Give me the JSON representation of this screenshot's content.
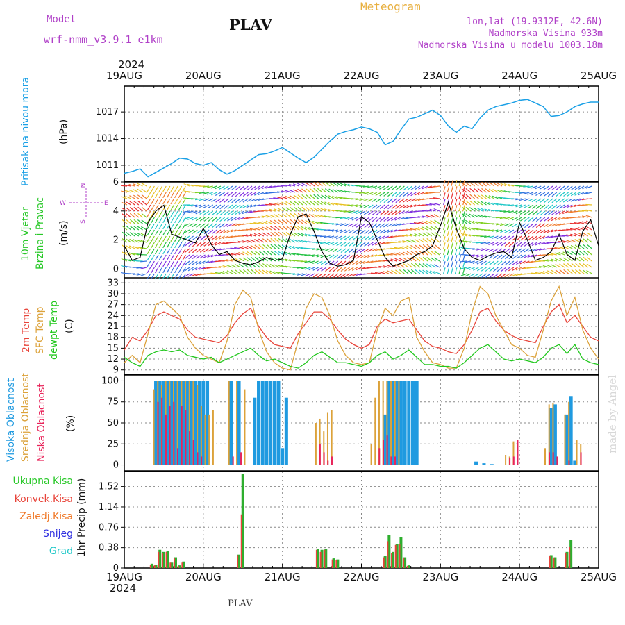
{
  "header": {
    "model_label": "Model",
    "model_value": "wrf-nmm_v3.9.1 e1km",
    "station": "PLAV",
    "meteogram": "Meteogram",
    "lonlat": "lon,lat (19.9312E, 42.6N)",
    "elevation": "Nadmorska Visina 933m",
    "model_elevation": "Nadmorska Visina u modelu 1003.18m",
    "year_top": "2024",
    "year_bottom": "2024",
    "footer_station": "PLAV",
    "watermark": "made by Angel"
  },
  "colors": {
    "pressure": "#1aa0e6",
    "temp2m": "#e8443a",
    "sfc": "#dca23a",
    "dew": "#22c81e",
    "high_cloud": "#1f9ae0",
    "mid_cloud": "#dca23a",
    "low_cloud": "#e8245a",
    "total_precip": "#2eae2e",
    "conv_precip": "#e8443a",
    "magenta": "#b040c8",
    "cyan": "#20c8c8",
    "blue": "#3030e0",
    "green_label": "#28c828",
    "orange_label": "#f07a2a"
  },
  "chart_data": [
    {
      "type": "line",
      "panel": "pressure",
      "ylabel_main": "Pritisak na nivou mora",
      "ylabel_unit": "(hPa)",
      "yticks": [
        1011,
        1014,
        1017
      ],
      "ylim": [
        1009.2,
        1019.9
      ],
      "x_day_labels": [
        "19AUG",
        "20AUG",
        "21AUG",
        "22AUG",
        "23AUG",
        "24AUG",
        "25AUG"
      ],
      "xlim_days": [
        0,
        6
      ],
      "series": [
        {
          "color_key": "pressure",
          "x": [
            0,
            0.1,
            0.2,
            0.3,
            0.4,
            0.5,
            0.6,
            0.7,
            0.8,
            0.9,
            1.0,
            1.1,
            1.2,
            1.3,
            1.4,
            1.5,
            1.6,
            1.7,
            1.8,
            1.9,
            2.0,
            2.1,
            2.2,
            2.3,
            2.4,
            2.5,
            2.6,
            2.7,
            2.8,
            2.9,
            3.0,
            3.1,
            3.2,
            3.3,
            3.4,
            3.5,
            3.6,
            3.7,
            3.8,
            3.9,
            4.0,
            4.1,
            4.2,
            4.3,
            4.4,
            4.5,
            4.6,
            4.7,
            4.8,
            4.9,
            5.0,
            5.1,
            5.2,
            5.3,
            5.4,
            5.5,
            5.6,
            5.7,
            5.8,
            5.9,
            6.0
          ],
          "values": [
            1010.1,
            1010.3,
            1010.6,
            1009.7,
            1010.2,
            1010.7,
            1011.2,
            1011.8,
            1011.7,
            1011.2,
            1011.0,
            1011.3,
            1010.5,
            1010.0,
            1010.4,
            1011.0,
            1011.6,
            1012.2,
            1012.3,
            1012.6,
            1013.0,
            1012.4,
            1011.8,
            1011.3,
            1011.9,
            1012.8,
            1013.7,
            1014.5,
            1014.8,
            1015.0,
            1015.3,
            1015.1,
            1014.7,
            1013.3,
            1013.7,
            1015.0,
            1016.2,
            1016.4,
            1016.8,
            1017.2,
            1016.6,
            1015.4,
            1014.7,
            1015.4,
            1015.1,
            1016.3,
            1017.2,
            1017.6,
            1017.8,
            1018.0,
            1018.3,
            1018.4,
            1018.0,
            1017.6,
            1016.5,
            1016.6,
            1017.0,
            1017.6,
            1017.9,
            1018.1,
            1018.1
          ]
        }
      ]
    },
    {
      "type": "line",
      "panel": "wind",
      "ylabel_main": "10m Vjetar",
      "ylabel_sub": "Brzina i Pravac",
      "ylabel_unit": "(m/s)",
      "compass": {
        "n": "N",
        "s": "S",
        "e": "E",
        "w": "W"
      },
      "yticks": [
        0,
        2,
        4,
        6
      ],
      "ylim": [
        -0.6,
        6
      ],
      "x_day_labels": [
        "19AUG",
        "20AUG",
        "21AUG",
        "22AUG",
        "23AUG",
        "24AUG",
        "25AUG"
      ],
      "xlim_days": [
        0,
        6
      ],
      "series": [
        {
          "name": "speed",
          "color": "#000000",
          "x": [
            0,
            0.1,
            0.2,
            0.3,
            0.4,
            0.5,
            0.6,
            0.7,
            0.8,
            0.9,
            1.0,
            1.1,
            1.2,
            1.3,
            1.4,
            1.5,
            1.6,
            1.7,
            1.8,
            1.9,
            2.0,
            2.1,
            2.2,
            2.3,
            2.4,
            2.5,
            2.6,
            2.7,
            2.8,
            2.9,
            3.0,
            3.1,
            3.2,
            3.3,
            3.4,
            3.5,
            3.6,
            3.7,
            3.8,
            3.9,
            4.0,
            4.1,
            4.2,
            4.3,
            4.4,
            4.5,
            4.6,
            4.7,
            4.8,
            4.9,
            5.0,
            5.1,
            5.2,
            5.3,
            5.4,
            5.5,
            5.6,
            5.7,
            5.8,
            5.9,
            6.0
          ],
          "values": [
            1.6,
            0.6,
            0.8,
            3.2,
            4.0,
            4.4,
            2.4,
            2.2,
            2.0,
            1.8,
            2.8,
            1.7,
            1.0,
            1.2,
            0.6,
            0.4,
            0.3,
            0.5,
            0.8,
            0.6,
            0.7,
            2.4,
            3.6,
            3.8,
            2.6,
            1.2,
            0.4,
            0.2,
            0.3,
            0.6,
            3.6,
            3.2,
            2.0,
            0.8,
            0.2,
            0.4,
            0.6,
            1.0,
            1.2,
            1.6,
            3.0,
            4.6,
            2.8,
            1.4,
            0.8,
            0.6,
            0.9,
            1.1,
            1.2,
            0.8,
            3.2,
            2.0,
            0.6,
            0.8,
            1.2,
            2.4,
            1.0,
            0.6,
            2.6,
            3.4,
            1.6
          ]
        }
      ]
    },
    {
      "type": "line",
      "panel": "temperature",
      "ylabel_lines": [
        "2m Temp",
        "SFC Temp",
        "dewpt Temp"
      ],
      "ylabel_unit": "(C)",
      "yticks": [
        9,
        12,
        15,
        18,
        21,
        24,
        27,
        30,
        33
      ],
      "ylim": [
        7.8,
        34.2
      ],
      "x_day_labels": [
        "19AUG",
        "20AUG",
        "21AUG",
        "22AUG",
        "23AUG",
        "24AUG",
        "25AUG"
      ],
      "xlim_days": [
        0,
        6
      ],
      "x": [
        0,
        0.1,
        0.2,
        0.3,
        0.4,
        0.5,
        0.6,
        0.7,
        0.8,
        0.9,
        1.0,
        1.1,
        1.2,
        1.3,
        1.4,
        1.5,
        1.6,
        1.7,
        1.8,
        1.9,
        2.0,
        2.1,
        2.2,
        2.3,
        2.4,
        2.5,
        2.6,
        2.7,
        2.8,
        2.9,
        3.0,
        3.1,
        3.2,
        3.3,
        3.4,
        3.5,
        3.6,
        3.7,
        3.8,
        3.9,
        4.0,
        4.1,
        4.2,
        4.3,
        4.4,
        4.5,
        4.6,
        4.7,
        4.8,
        4.9,
        5.0,
        5.1,
        5.2,
        5.3,
        5.4,
        5.5,
        5.6,
        5.7,
        5.8,
        5.9,
        6.0
      ],
      "series": [
        {
          "name": "2m Temp",
          "color_key": "temp2m",
          "values": [
            14.5,
            18,
            17,
            20,
            24,
            25,
            24,
            23,
            20,
            18,
            17.5,
            17,
            16.5,
            18.5,
            22,
            24.5,
            26,
            21,
            18,
            16,
            15.5,
            15,
            19,
            22,
            25,
            25,
            23,
            20,
            17.5,
            16,
            15,
            16,
            21,
            23,
            22,
            22.5,
            23,
            20,
            17,
            15.5,
            15,
            14,
            13.5,
            16,
            20,
            25,
            26,
            22.5,
            20,
            18.5,
            17.5,
            17,
            16.5,
            21,
            25,
            27,
            22,
            24,
            21,
            18,
            17
          ]
        },
        {
          "name": "SFC Temp",
          "color_key": "sfc",
          "values": [
            11,
            13,
            11,
            19,
            27,
            28,
            26,
            24,
            18,
            15,
            13,
            12,
            11,
            17,
            27,
            31,
            29,
            20,
            14,
            11,
            9.5,
            9,
            17,
            26,
            30,
            29,
            24,
            17,
            13,
            11,
            10.5,
            11,
            20,
            26,
            24,
            28,
            29,
            18,
            14,
            11,
            10.5,
            9.5,
            9.5,
            15,
            25,
            32,
            30,
            24,
            20,
            16,
            15,
            13,
            12.5,
            20,
            28,
            32,
            24,
            29,
            20,
            15,
            12
          ]
        },
        {
          "name": "dewpt Temp",
          "color_key": "dew",
          "values": [
            12.5,
            11,
            10,
            13,
            14,
            14.5,
            14,
            14.5,
            13,
            12.5,
            12,
            12.5,
            11,
            12,
            13,
            14,
            15,
            13,
            11.5,
            12,
            11,
            10,
            9.5,
            11,
            13,
            14,
            12.5,
            11,
            11,
            10.5,
            10,
            11,
            13,
            14,
            12,
            13,
            14.5,
            12.5,
            10.5,
            10.5,
            10,
            10,
            9.5,
            11,
            13,
            15,
            16,
            14,
            12,
            11.5,
            12,
            11.5,
            11,
            12.5,
            15,
            16,
            13.5,
            16,
            12,
            11,
            10.5
          ]
        }
      ]
    },
    {
      "type": "bar",
      "panel": "clouds",
      "ylabel_lines": [
        "Visoka Oblacnost",
        "Srednja Oblacnost",
        "Niska Oblacnost"
      ],
      "ylabel_unit": "(%)",
      "yticks": [
        0,
        25,
        50,
        75,
        100
      ],
      "ylim": [
        -7,
        107
      ],
      "x_day_labels": [
        "19AUG",
        "20AUG",
        "21AUG",
        "22AUG",
        "23AUG",
        "24AUG",
        "25AUG"
      ],
      "xlim_days": [
        0,
        6
      ],
      "x": [
        0.4,
        0.45,
        0.5,
        0.55,
        0.6,
        0.65,
        0.7,
        0.75,
        0.8,
        0.85,
        0.9,
        0.95,
        1.0,
        1.05,
        1.1,
        1.15,
        1.25,
        1.35,
        1.45,
        1.5,
        1.55,
        1.65,
        1.7,
        1.75,
        1.8,
        1.85,
        1.9,
        1.95,
        2.0,
        2.05,
        2.45,
        2.5,
        2.55,
        2.6,
        2.65,
        2.7,
        3.15,
        3.2,
        3.25,
        3.3,
        3.35,
        3.4,
        3.45,
        3.5,
        3.55,
        3.6,
        3.65,
        3.7,
        4.45,
        4.55,
        4.65,
        4.75,
        4.85,
        4.9,
        4.95,
        5.35,
        5.4,
        5.45,
        5.55,
        5.6,
        5.65,
        5.7,
        5.75,
        5.8
      ],
      "series": [
        {
          "name": "Visoka Oblacnost",
          "color_key": "high_cloud",
          "values": [
            100,
            100,
            100,
            100,
            100,
            100,
            100,
            100,
            100,
            100,
            100,
            100,
            100,
            100,
            0,
            0,
            0,
            100,
            100,
            0,
            0,
            80,
            100,
            100,
            100,
            100,
            100,
            100,
            20,
            80,
            0,
            0,
            0,
            0,
            0,
            0,
            0,
            0,
            0,
            60,
            100,
            100,
            100,
            100,
            100,
            100,
            100,
            100,
            4,
            2,
            1,
            0,
            0,
            0,
            0,
            0,
            68,
            72,
            0,
            60,
            82,
            5,
            0,
            0
          ]
        },
        {
          "name": "Srednja Oblacnost",
          "color_key": "mid_cloud",
          "values": [
            90,
            100,
            95,
            100,
            100,
            100,
            100,
            100,
            100,
            100,
            100,
            95,
            70,
            60,
            60,
            65,
            0,
            100,
            100,
            0,
            90,
            0,
            0,
            0,
            0,
            0,
            0,
            0,
            0,
            0,
            50,
            55,
            40,
            62,
            65,
            0,
            25,
            80,
            100,
            100,
            100,
            100,
            100,
            100,
            0,
            0,
            0,
            0,
            0,
            0,
            0,
            0,
            12,
            10,
            28,
            20,
            72,
            74,
            0,
            60,
            75,
            0,
            30,
            25
          ]
        },
        {
          "name": "Niska Oblacnost",
          "color_key": "low_cloud",
          "values": [
            75,
            80,
            60,
            70,
            75,
            20,
            70,
            65,
            40,
            30,
            15,
            10,
            0,
            0,
            0,
            0,
            0,
            10,
            15,
            0,
            0,
            0,
            0,
            0,
            0,
            0,
            0,
            0,
            0,
            0,
            25,
            15,
            5,
            10,
            0,
            0,
            0,
            20,
            30,
            35,
            10,
            10,
            0,
            0,
            0,
            0,
            0,
            0,
            0,
            0,
            0,
            0,
            8,
            10,
            30,
            15,
            15,
            10,
            0,
            5,
            0,
            0,
            15,
            0
          ]
        }
      ]
    },
    {
      "type": "bar",
      "panel": "precipitation",
      "legend": [
        "Ukupna Kisa",
        "Konvek.Kisa",
        "Zaledj.Kisa",
        "Snijeg",
        "Grad"
      ],
      "ylabel_main": "1hr Precip (mm)",
      "yticks": [
        "0",
        "0.38",
        "0.76",
        "1.14",
        "1.52"
      ],
      "ylim": [
        0,
        1.8
      ],
      "x_day_labels": [
        "19AUG",
        "20AUG",
        "21AUG",
        "22AUG",
        "23AUG",
        "24AUG",
        "25AUG"
      ],
      "xlim_days": [
        0,
        6
      ],
      "x": [
        0.35,
        0.4,
        0.45,
        0.5,
        0.55,
        0.6,
        0.65,
        0.7,
        0.75,
        0.8,
        1.45,
        1.5,
        2.45,
        2.5,
        2.55,
        2.65,
        2.7,
        2.75,
        3.3,
        3.35,
        3.4,
        3.45,
        3.5,
        3.55,
        3.6,
        5.4,
        5.45,
        5.6,
        5.65
      ],
      "series": [
        {
          "name": "Ukupna Kisa",
          "color_key": "total_precip",
          "values": [
            0.08,
            0.06,
            0.34,
            0.3,
            0.32,
            0.1,
            0.2,
            0.05,
            0.12,
            0.0,
            0.25,
            1.76,
            0.36,
            0.34,
            0.35,
            0.18,
            0.16,
            0.0,
            0.22,
            0.62,
            0.3,
            0.45,
            0.58,
            0.2,
            0.05,
            0.24,
            0.2,
            0.3,
            0.53
          ]
        },
        {
          "name": "Konvek.Kisa",
          "color_key": "conv_precip",
          "values": [
            0.06,
            0.05,
            0.3,
            0.28,
            0.3,
            0.1,
            0.18,
            0.04,
            0.1,
            0.0,
            0.24,
            1.0,
            0.34,
            0.3,
            0.34,
            0.16,
            0.15,
            0.0,
            0.2,
            0.5,
            0.28,
            0.43,
            0.45,
            0.18,
            0.04,
            0.22,
            0.18,
            0.28,
            0.4
          ]
        }
      ]
    }
  ]
}
